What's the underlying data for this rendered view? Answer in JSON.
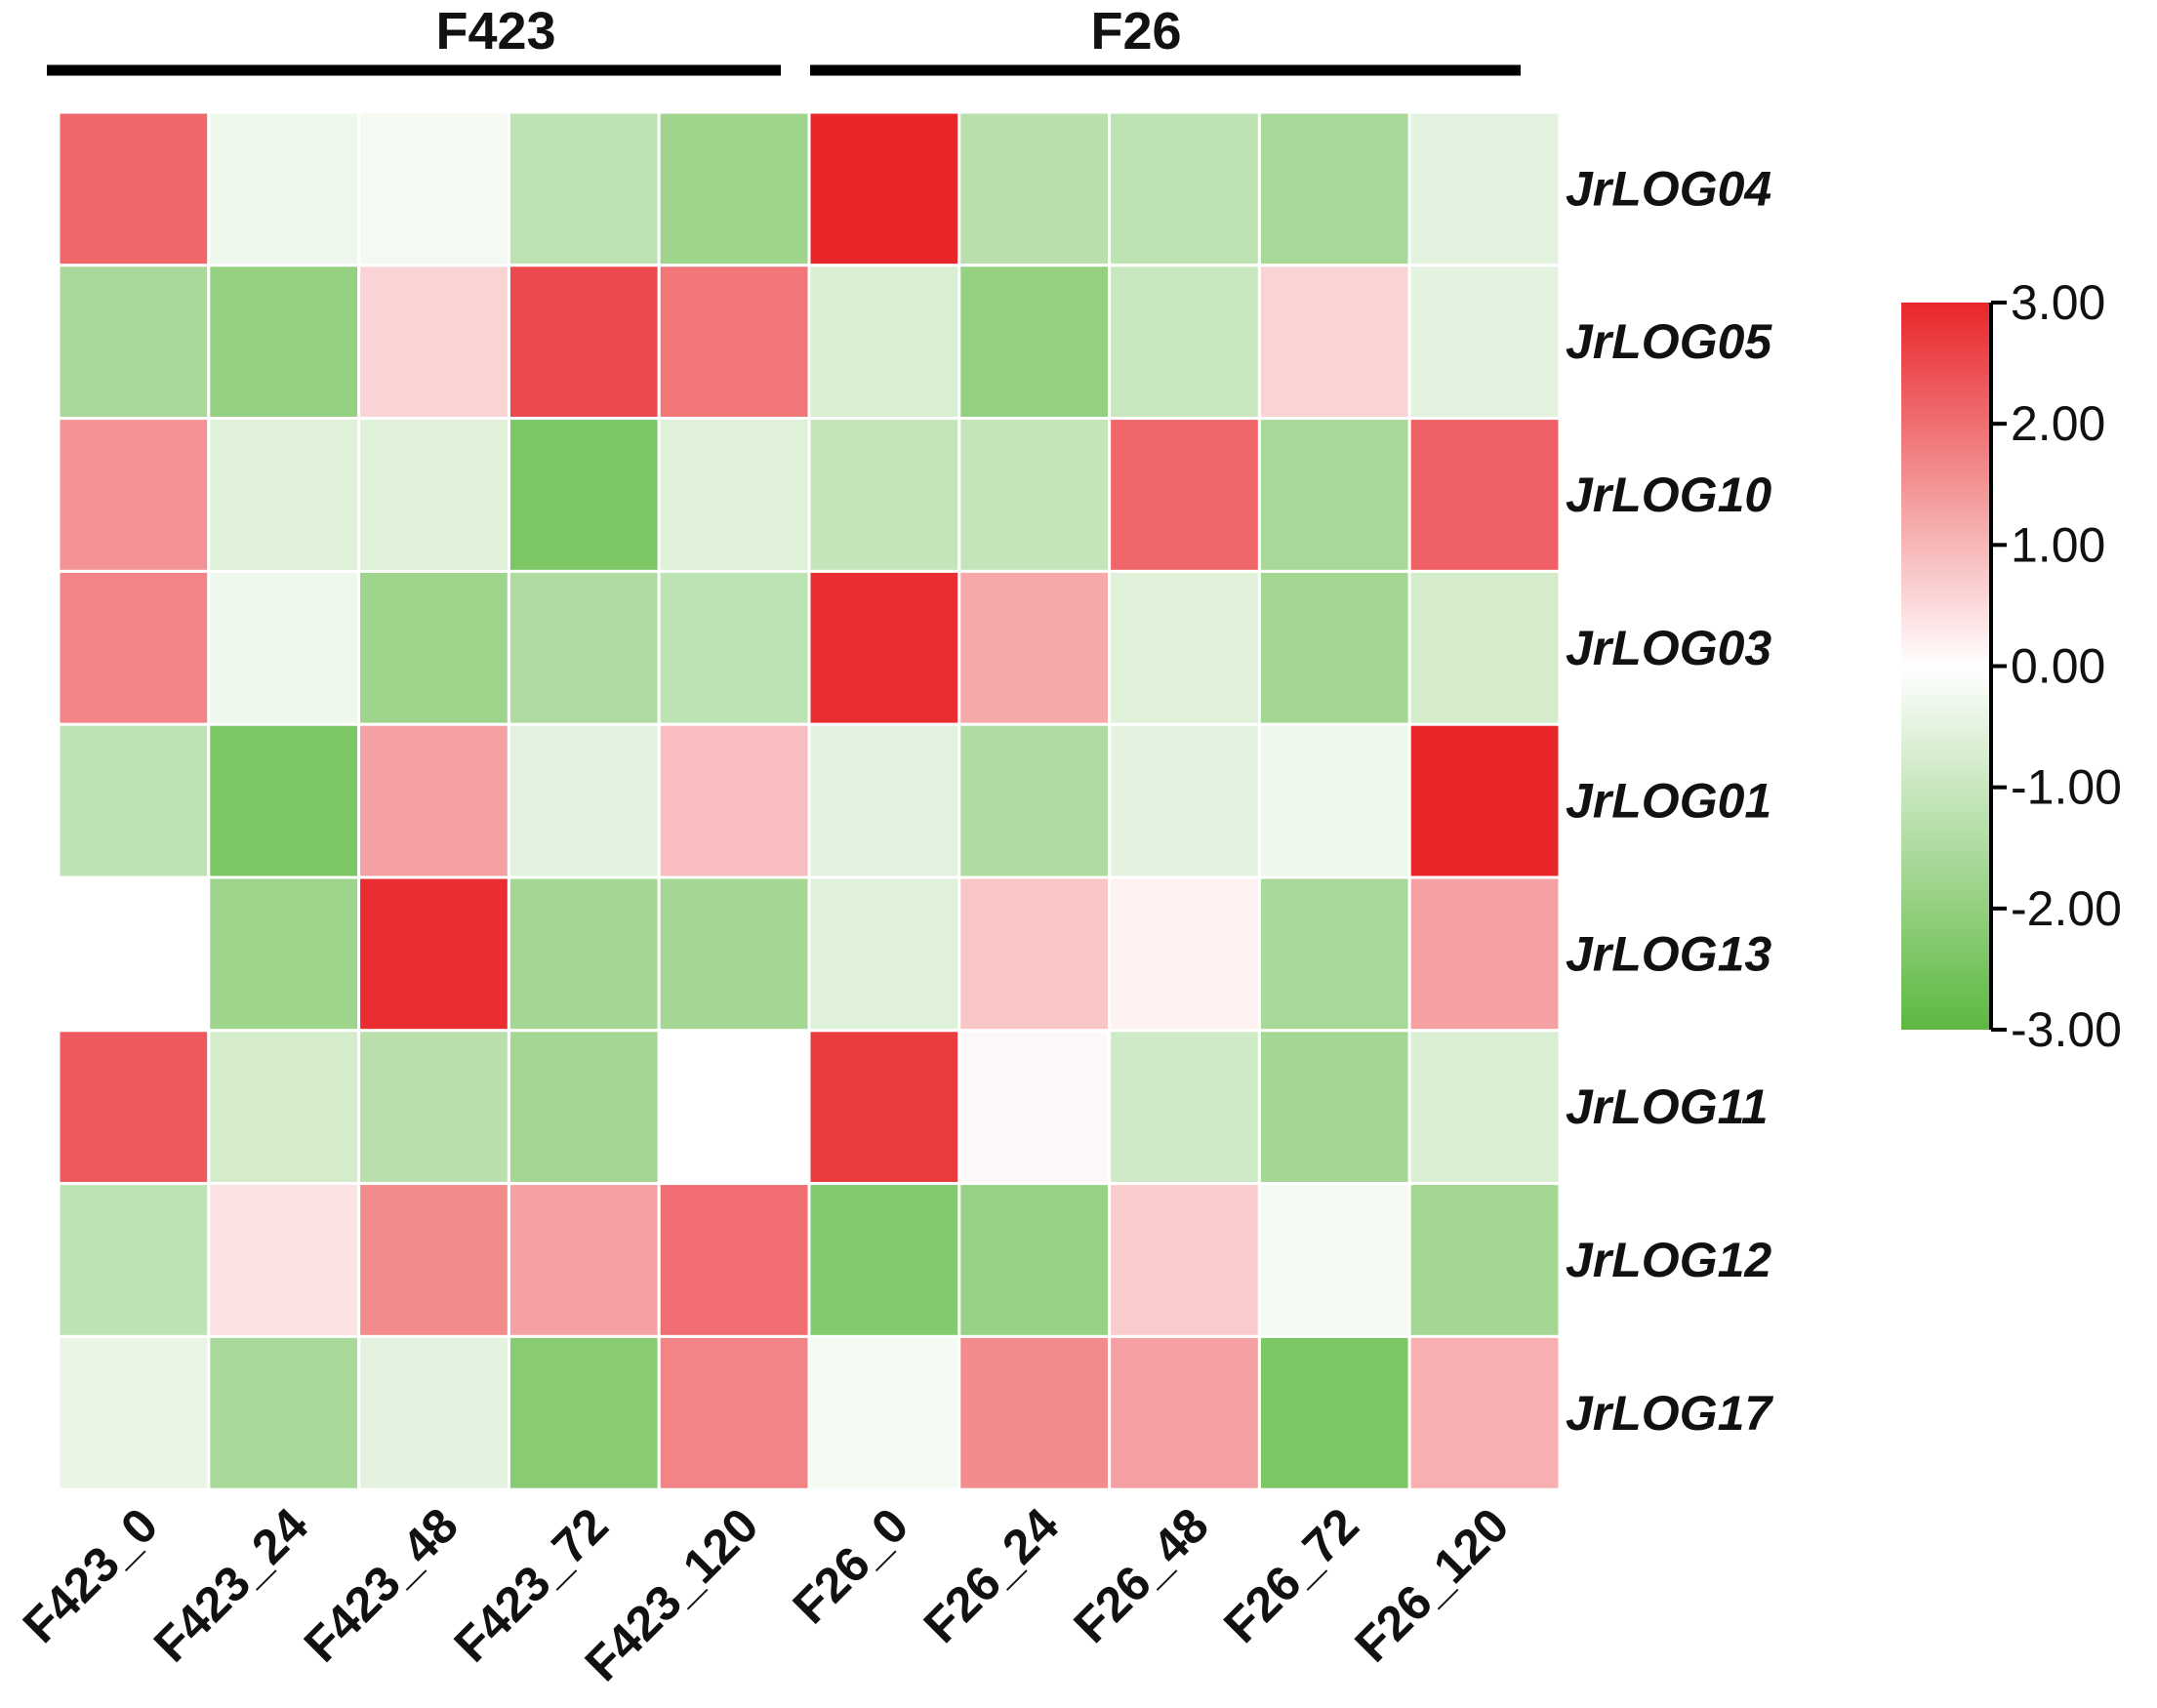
{
  "chart_data": {
    "type": "heatmap",
    "groups": [
      {
        "label": "F423",
        "columns": [
          "F423_0",
          "F423_24",
          "F423_48",
          "F423_72",
          "F423_120"
        ]
      },
      {
        "label": "F26",
        "columns": [
          "F26_0",
          "F26_24",
          "F26_48",
          "F26_72",
          "F26_120"
        ]
      }
    ],
    "columns": [
      "F423_0",
      "F423_24",
      "F423_48",
      "F423_72",
      "F423_120",
      "F26_0",
      "F26_24",
      "F26_48",
      "F26_72",
      "F26_120"
    ],
    "rows": [
      "JrLOG04",
      "JrLOG05",
      "JrLOG10",
      "JrLOG03",
      "JrLOG01",
      "JrLOG13",
      "JrLOG11",
      "JrLOG12",
      "JrLOG17"
    ],
    "values": [
      [
        2.1,
        -0.3,
        -0.2,
        -1.2,
        -1.8,
        3.0,
        -1.3,
        -1.2,
        -1.6,
        -0.5
      ],
      [
        -1.6,
        -2.0,
        0.6,
        2.5,
        1.9,
        -0.7,
        -2.0,
        -1.0,
        0.6,
        -0.5
      ],
      [
        1.5,
        -0.6,
        -0.6,
        -2.4,
        -0.6,
        -1.1,
        -1.1,
        2.1,
        -1.6,
        2.2
      ],
      [
        1.7,
        -0.3,
        -1.8,
        -1.5,
        -1.2,
        2.9,
        1.2,
        -0.6,
        -1.7,
        -0.8
      ],
      [
        -1.2,
        -2.4,
        1.3,
        -0.5,
        0.9,
        -0.5,
        -1.5,
        -0.5,
        -0.3,
        3.0
      ],
      [
        0.0,
        -1.8,
        2.9,
        -1.7,
        -1.7,
        -0.6,
        0.8,
        0.2,
        -1.6,
        1.3
      ],
      [
        2.3,
        -0.8,
        -1.3,
        -1.7,
        0.0,
        2.7,
        0.1,
        -0.9,
        -1.7,
        -0.7
      ],
      [
        -1.2,
        0.4,
        1.6,
        1.3,
        2.0,
        -2.3,
        -1.9,
        0.7,
        -0.2,
        -1.7
      ],
      [
        -0.4,
        -1.6,
        -0.5,
        -2.2,
        1.7,
        -0.2,
        1.6,
        1.3,
        -2.4,
        1.1
      ]
    ],
    "scale": {
      "min": -3.0,
      "max": 3.0,
      "ticks": [
        "3.00",
        "2.00",
        "1.00",
        "0.00",
        "-1.00",
        "-2.00",
        "-3.00"
      ],
      "low_color": "#5db840",
      "mid_color": "#ffffff",
      "high_color": "#e8262a"
    },
    "legend_position": "right"
  }
}
